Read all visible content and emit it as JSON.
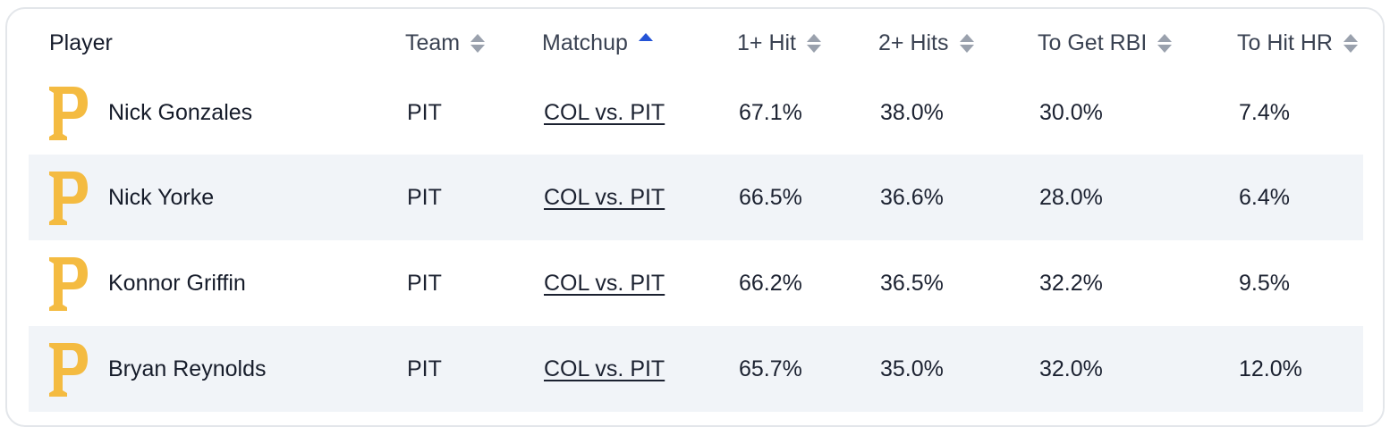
{
  "colors": {
    "logo": "#F4BB41",
    "accent_sort": "#2453d6",
    "row_alt_bg": "#f1f4f8"
  },
  "header": {
    "player": "Player",
    "team": "Team",
    "matchup": "Matchup",
    "hit1": "1+ Hit",
    "hit2": "2+ Hits",
    "rbi": "To Get RBI",
    "hr": "To Hit HR"
  },
  "rows": [
    {
      "logo": "pirates-p-logo",
      "player": "Nick Gonzales",
      "team": "PIT",
      "matchup": "COL vs. PIT",
      "hit1": "67.1%",
      "hit2": "38.0%",
      "rbi": "30.0%",
      "hr": "7.4%"
    },
    {
      "logo": "pirates-p-logo",
      "player": "Nick Yorke",
      "team": "PIT",
      "matchup": "COL vs. PIT",
      "hit1": "66.5%",
      "hit2": "36.6%",
      "rbi": "28.0%",
      "hr": "6.4%"
    },
    {
      "logo": "pirates-p-logo",
      "player": "Konnor Griffin",
      "team": "PIT",
      "matchup": "COL vs. PIT",
      "hit1": "66.2%",
      "hit2": "36.5%",
      "rbi": "32.2%",
      "hr": "9.5%"
    },
    {
      "logo": "pirates-p-logo",
      "player": "Bryan Reynolds",
      "team": "PIT",
      "matchup": "COL vs. PIT",
      "hit1": "65.7%",
      "hit2": "35.0%",
      "rbi": "32.0%",
      "hr": "12.0%"
    }
  ]
}
